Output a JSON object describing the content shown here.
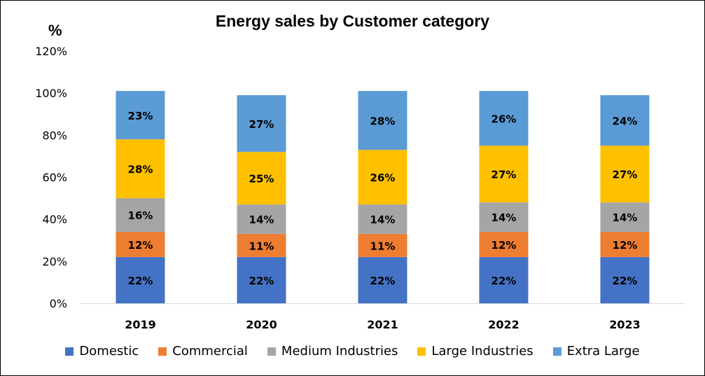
{
  "chart_data": {
    "type": "bar",
    "stacked": true,
    "title": "Energy sales  by Customer category",
    "ylabel": "%",
    "xlabel": "",
    "ylim": [
      0,
      120
    ],
    "yticks": [
      "0%",
      "20%",
      "40%",
      "60%",
      "80%",
      "100%",
      "120%"
    ],
    "categories": [
      "2019",
      "2020",
      "2021",
      "2022",
      "2023"
    ],
    "series": [
      {
        "name": "Domestic",
        "color": "#4472C4",
        "values": [
          22,
          22,
          22,
          22,
          22
        ],
        "labels": [
          "22%",
          "22%",
          "22%",
          "22%",
          "22%"
        ]
      },
      {
        "name": "Commercial",
        "color": "#ED7D31",
        "values": [
          12,
          11,
          11,
          12,
          12
        ],
        "labels": [
          "12%",
          "11%",
          "11%",
          "12%",
          "12%"
        ]
      },
      {
        "name": "Medium Industries",
        "color": "#A5A5A5",
        "values": [
          16,
          14,
          14,
          14,
          14
        ],
        "labels": [
          "16%",
          "14%",
          "14%",
          "14%",
          "14%"
        ]
      },
      {
        "name": "Large Industries",
        "color": "#FFC000",
        "values": [
          28,
          25,
          26,
          27,
          27
        ],
        "labels": [
          "28%",
          "25%",
          "26%",
          "27%",
          "27%"
        ]
      },
      {
        "name": "Extra Large",
        "color": "#5B9BD5",
        "values": [
          23,
          27,
          28,
          26,
          24
        ],
        "labels": [
          "23%",
          "27%",
          "28%",
          "26%",
          "24%"
        ]
      }
    ],
    "grid": false,
    "legend_position": "bottom"
  }
}
